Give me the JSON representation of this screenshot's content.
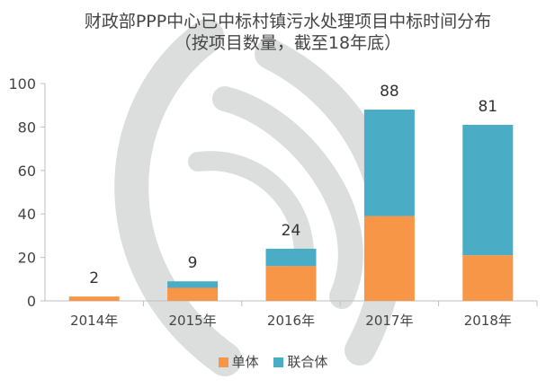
{
  "chart_data": {
    "type": "bar",
    "stacked": true,
    "title": "财政部PPP中心已中标村镇污水处理项目中标时间分布",
    "subtitle": "（按项目数量，截至18年底）",
    "categories": [
      "2014年",
      "2015年",
      "2016年",
      "2017年",
      "2018年"
    ],
    "series": [
      {
        "name": "单体",
        "values": [
          2,
          6,
          16,
          39,
          21
        ],
        "color": "#F79646"
      },
      {
        "name": "联合体",
        "values": [
          0,
          3,
          8,
          49,
          60
        ],
        "color": "#4BACC6"
      }
    ],
    "totals": [
      2,
      9,
      24,
      88,
      81
    ],
    "ylim": [
      0,
      100
    ],
    "yticks": [
      0,
      20,
      40,
      60,
      80,
      100
    ],
    "grid": false,
    "legend": "bottom",
    "xlabel": "",
    "ylabel": ""
  }
}
